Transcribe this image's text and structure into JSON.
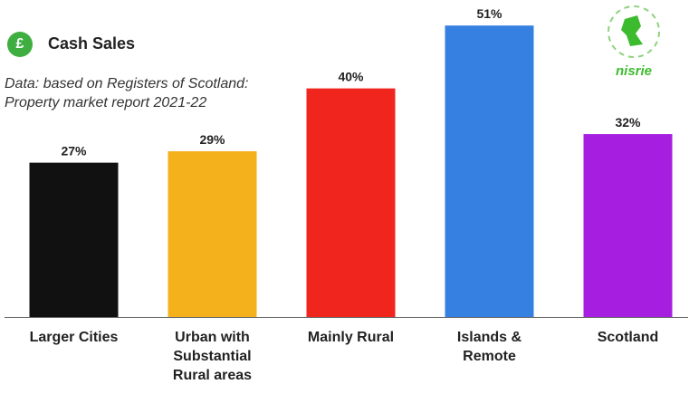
{
  "header": {
    "icon": "£",
    "title": "Cash Sales",
    "subtitle": "Data: based on Registers of Scotland: Property market report 2021-22",
    "logo": "nisrie"
  },
  "chart_data": {
    "type": "bar",
    "categories": [
      "Larger Cities",
      "Urban with Substantial Rural areas",
      "Mainly Rural",
      "Islands & Remote",
      "Scotland"
    ],
    "values": [
      27,
      29,
      40,
      51,
      32
    ],
    "value_labels": [
      "27%",
      "29%",
      "40%",
      "51%",
      "32%"
    ],
    "colors": [
      "#111111",
      "#f4b11c",
      "#f0261e",
      "#3580e0",
      "#a61fe0"
    ]
  }
}
